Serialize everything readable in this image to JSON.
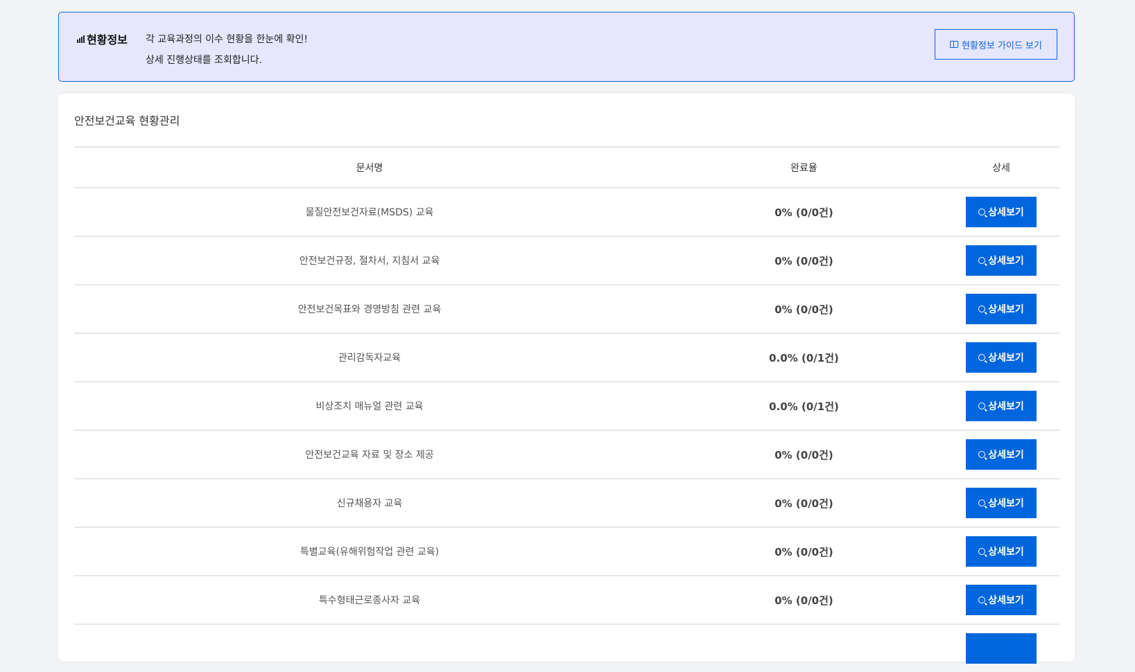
{
  "banner": {
    "label": "현황정보",
    "line1": "각 교육과정의 이수 현황을 한눈에 확인!",
    "line2": "상세 진행상태를 조회합니다.",
    "guide_button": "현황정보 가이드 보기"
  },
  "section": {
    "title": "안전보건교육 현황관리"
  },
  "table": {
    "headers": [
      "문서명",
      "완료율",
      "상세"
    ],
    "detail_label": "상세보기",
    "rows": [
      {
        "name": "물질안전보건자료(MSDS) 교육",
        "rate": "0% (0/0건)"
      },
      {
        "name": "안전보건규정, 절차서, 지침서 교육",
        "rate": "0% (0/0건)"
      },
      {
        "name": "안전보건목표와 경영방침 관련 교육",
        "rate": "0% (0/0건)"
      },
      {
        "name": "관리감독자교육",
        "rate": "0.0% (0/1건)"
      },
      {
        "name": "비상조치 매뉴얼 관련 교육",
        "rate": "0.0% (0/1건)"
      },
      {
        "name": "안전보건교육 자료 및 장소 제공",
        "rate": "0% (0/0건)"
      },
      {
        "name": "신규채용자 교육",
        "rate": "0% (0/0건)"
      },
      {
        "name": "특별교육(유해위험작업 관련 교육)",
        "rate": "0% (0/0건)"
      },
      {
        "name": "특수형태근로종사자 교육",
        "rate": "0% (0/0건)"
      }
    ]
  },
  "colors": {
    "accent": "#0066dd",
    "banner_bg": "#e6e6fd",
    "banner_border": "#0a66d8"
  }
}
